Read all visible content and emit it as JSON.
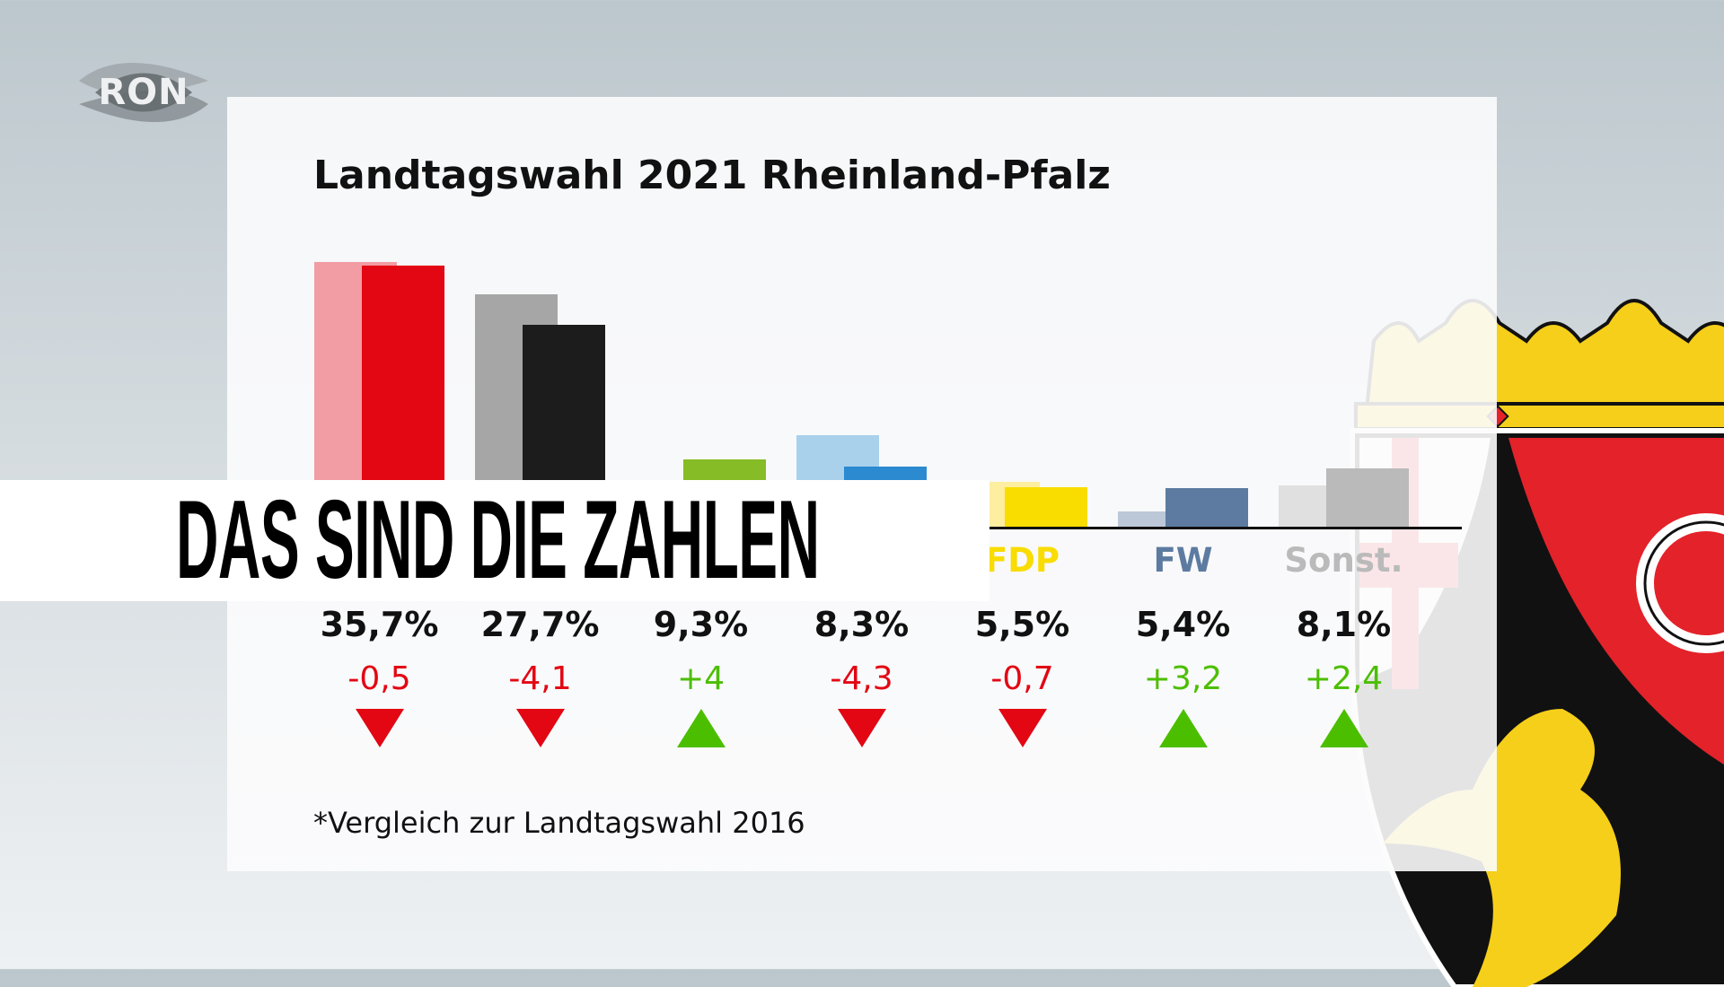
{
  "logo": {
    "text": "RON"
  },
  "banner": {
    "text": "DAS SIND DIE ZAHLEN"
  },
  "colors": {
    "up": "#4cbe00",
    "down": "#e30613"
  },
  "chart_data": {
    "type": "bar",
    "title": "Landtagswahl 2021 Rheinland-Pfalz",
    "footnote": "*Vergleich zur Landtagswahl 2016",
    "labels": [
      null,
      null,
      null,
      null,
      "FDP",
      "FW",
      "Sonst."
    ],
    "series": [
      {
        "name": "2016",
        "values": [
          36.2,
          31.8,
          5.3,
          12.6,
          6.2,
          2.2,
          5.7
        ]
      },
      {
        "name": "2021",
        "values": [
          35.7,
          27.7,
          9.3,
          8.3,
          5.5,
          5.4,
          8.1
        ]
      }
    ],
    "value_labels": [
      "35,7%",
      "27,7%",
      "9,3%",
      "8,3%",
      "5,5%",
      "5,4%",
      "8,1%"
    ],
    "changes": [
      "-0,5",
      "-4,1",
      "+4",
      "-4,3",
      "-0,7",
      "+3,2",
      "+2,4"
    ],
    "change_values": [
      -0.5,
      -4.1,
      4,
      -4.3,
      -0.7,
      3.2,
      2.4
    ],
    "colors_2016": [
      "#f29ca3",
      "#a6a6a6",
      "#d6e8b0",
      "#a9d1ec",
      "#fdeea0",
      "#bcc8d8",
      "#e0e0e0"
    ],
    "colors_2021": [
      "#e30613",
      "#1c1c1c",
      "#86bc25",
      "#2b8ad0",
      "#f9dc00",
      "#5d7ba0",
      "#bababa"
    ],
    "ylim": [
      0,
      40
    ]
  }
}
